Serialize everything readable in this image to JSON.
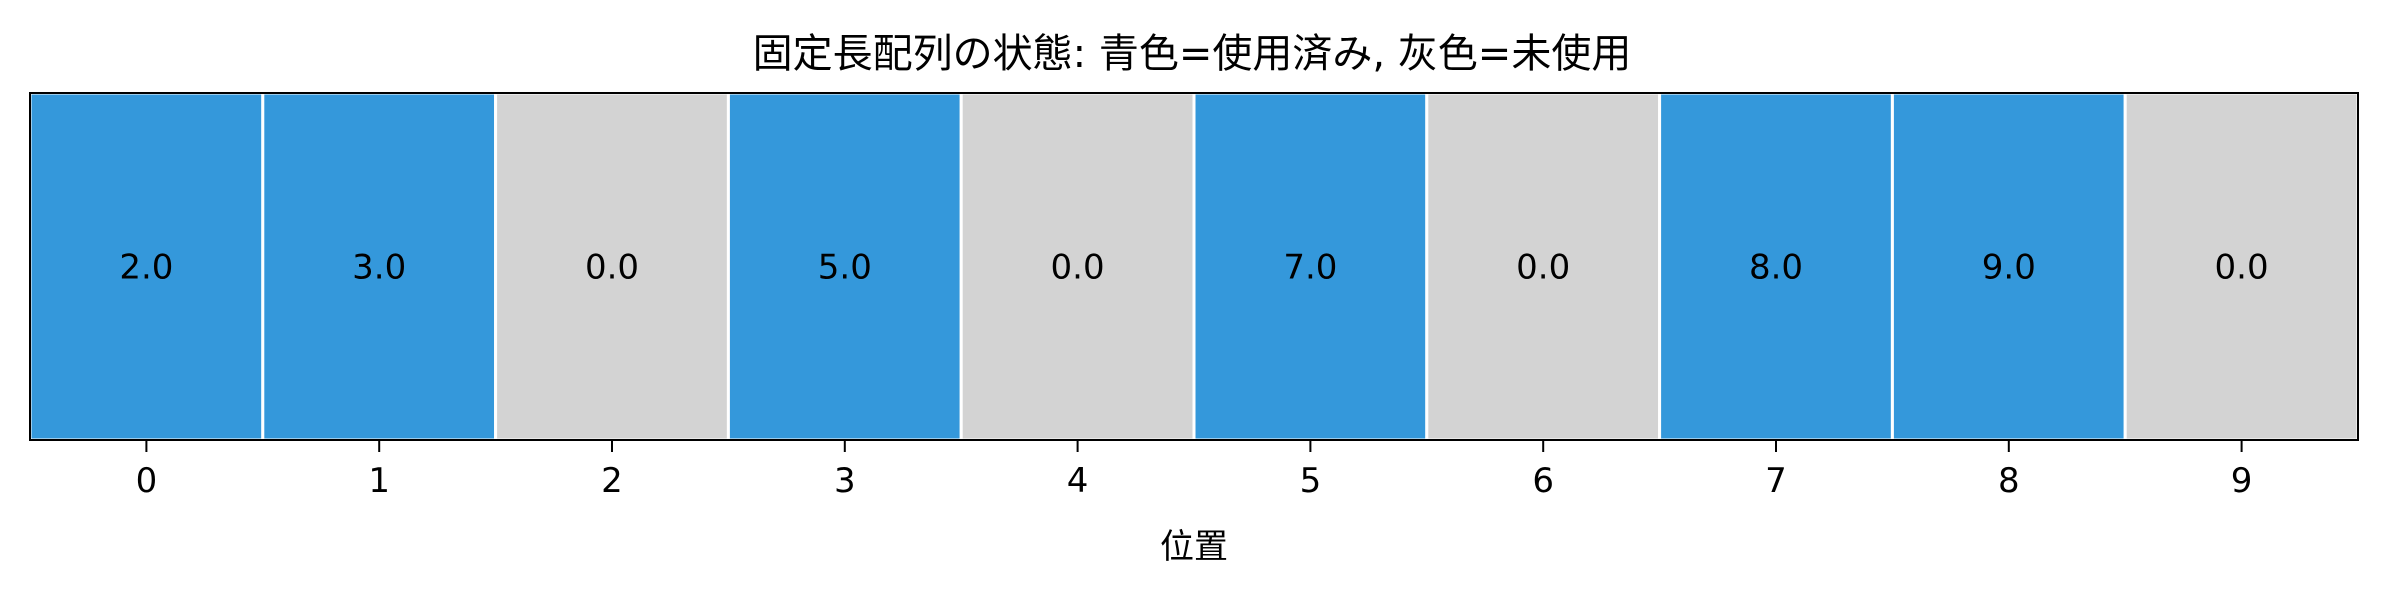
{
  "chart_data": {
    "type": "heatmap",
    "title": "固定長配列の状態: 青色=使用済み, 灰色=未使用",
    "xlabel": "位置",
    "ylabel": "",
    "categories": [
      "0",
      "1",
      "2",
      "3",
      "4",
      "5",
      "6",
      "7",
      "8",
      "9"
    ],
    "values": [
      2.0,
      3.0,
      0.0,
      5.0,
      0.0,
      7.0,
      0.0,
      8.0,
      9.0,
      0.0
    ],
    "value_labels": [
      "2.0",
      "3.0",
      "0.0",
      "5.0",
      "0.0",
      "7.0",
      "0.0",
      "8.0",
      "9.0",
      "0.0"
    ],
    "used": [
      true,
      true,
      false,
      true,
      false,
      true,
      false,
      true,
      true,
      false
    ],
    "colors": {
      "used": "#3498db",
      "unused": "#d3d3d3",
      "cell_border": "#ffffff",
      "frame": "#000000"
    },
    "grid": false,
    "legend": "none"
  }
}
